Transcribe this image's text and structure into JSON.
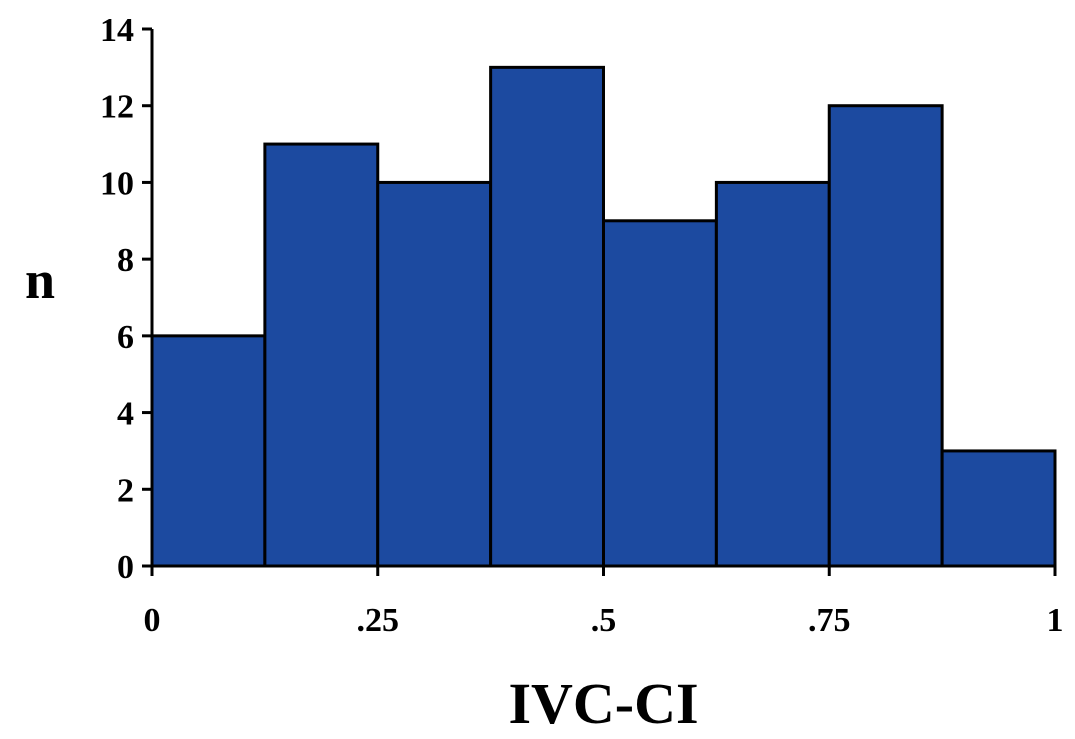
{
  "chart_data": {
    "type": "bar",
    "title": "",
    "xlabel": "IVC-CI",
    "ylabel": "n",
    "bins": [
      {
        "start": 0,
        "end": 0.125,
        "value": 6
      },
      {
        "start": 0.125,
        "end": 0.25,
        "value": 11
      },
      {
        "start": 0.25,
        "end": 0.375,
        "value": 10
      },
      {
        "start": 0.375,
        "end": 0.5,
        "value": 13
      },
      {
        "start": 0.5,
        "end": 0.625,
        "value": 9
      },
      {
        "start": 0.625,
        "end": 0.75,
        "value": 10
      },
      {
        "start": 0.75,
        "end": 0.875,
        "value": 12
      },
      {
        "start": 0.875,
        "end": 1,
        "value": 3
      }
    ],
    "xlim": [
      0,
      1
    ],
    "ylim": [
      0,
      14
    ],
    "x_ticks": [
      {
        "value": 0,
        "label": "0"
      },
      {
        "value": 0.25,
        "label": ".25"
      },
      {
        "value": 0.5,
        "label": ".5"
      },
      {
        "value": 0.75,
        "label": ".75"
      },
      {
        "value": 1,
        "label": "1"
      }
    ],
    "y_ticks": [
      {
        "value": 0,
        "label": "0"
      },
      {
        "value": 2,
        "label": "2"
      },
      {
        "value": 4,
        "label": "4"
      },
      {
        "value": 6,
        "label": "6"
      },
      {
        "value": 8,
        "label": "8"
      },
      {
        "value": 10,
        "label": "10"
      },
      {
        "value": 12,
        "label": "12"
      },
      {
        "value": 14,
        "label": "14"
      }
    ],
    "grid": false,
    "legend": "none",
    "bar_color": "#1c4aa0",
    "edge_color": "#000000"
  }
}
